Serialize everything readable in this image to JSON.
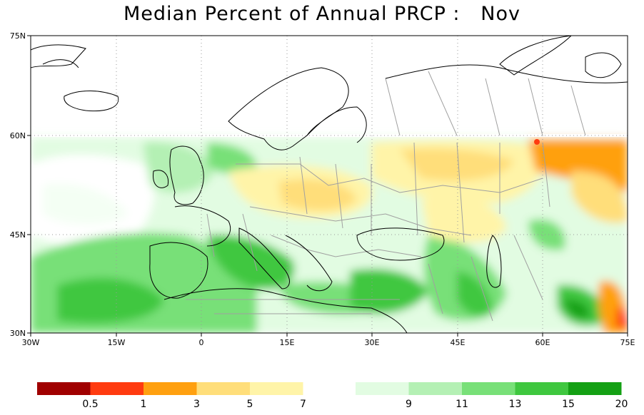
{
  "title": "Median Percent of Annual PRCP :   Nov",
  "map": {
    "lon_range": [
      -30,
      75
    ],
    "lat_range": [
      30,
      75
    ],
    "x_ticks": [
      "30W",
      "15W",
      "0",
      "15E",
      "30E",
      "45E",
      "60E",
      "75E"
    ],
    "y_ticks": [
      "75N",
      "60N",
      "45N",
      "30N"
    ],
    "data_coverage_north_limit": "60N"
  },
  "legend": {
    "warm": [
      {
        "color": "#a00000",
        "label": "0.5"
      },
      {
        "color": "#ff3b10",
        "label": "1"
      },
      {
        "color": "#ffa010",
        "label": "3"
      },
      {
        "color": "#ffde7a",
        "label": "5"
      },
      {
        "color": "#fff4a8",
        "label": "7"
      }
    ],
    "cool": [
      {
        "color": "#e2fce2",
        "label": "9"
      },
      {
        "color": "#b4f0b4",
        "label": "11"
      },
      {
        "color": "#78e078",
        "label": "13"
      },
      {
        "color": "#3fc73f",
        "label": "15"
      },
      {
        "color": "#14a014",
        "label": "20"
      }
    ]
  },
  "colors": {
    "land_outline": "#000000",
    "admin_borders": "#a0a0a0",
    "frame": "#000000"
  }
}
